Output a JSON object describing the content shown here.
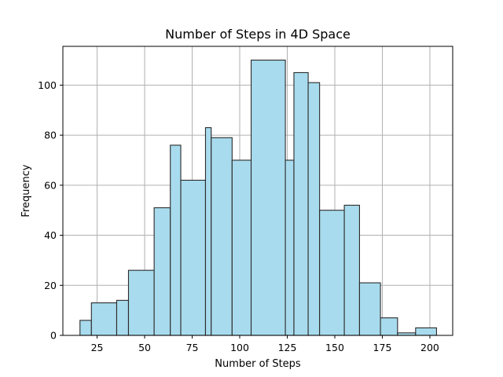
{
  "chart_data": {
    "type": "bar",
    "title": "Number of Steps in 4D Space",
    "xlabel": "Number of Steps",
    "ylabel": "Frequency",
    "xlim": [
      7,
      212
    ],
    "ylim": [
      0,
      115.5
    ],
    "x_ticks": [
      25,
      50,
      75,
      100,
      125,
      150,
      175,
      200
    ],
    "y_ticks": [
      0,
      20,
      40,
      60,
      80,
      100
    ],
    "bar_color": "#a8dbed",
    "edge_color": "#2b2b2b",
    "grid": true,
    "bins": [
      {
        "start": 16.0,
        "end": 22.0,
        "count": 6
      },
      {
        "start": 22.0,
        "end": 35.3,
        "count": 13
      },
      {
        "start": 35.3,
        "end": 41.5,
        "count": 14
      },
      {
        "start": 41.5,
        "end": 55.0,
        "count": 26
      },
      {
        "start": 55.0,
        "end": 63.5,
        "count": 51
      },
      {
        "start": 63.5,
        "end": 69.0,
        "count": 76
      },
      {
        "start": 69.0,
        "end": 82.0,
        "count": 62
      },
      {
        "start": 82.0,
        "end": 85.0,
        "count": 83
      },
      {
        "start": 85.0,
        "end": 96.0,
        "count": 79
      },
      {
        "start": 96.0,
        "end": 106.0,
        "count": 70
      },
      {
        "start": 106.0,
        "end": 124.0,
        "count": 110
      },
      {
        "start": 124.0,
        "end": 128.5,
        "count": 70
      },
      {
        "start": 128.5,
        "end": 136.0,
        "count": 105
      },
      {
        "start": 136.0,
        "end": 142.0,
        "count": 101
      },
      {
        "start": 142.0,
        "end": 155.0,
        "count": 50
      },
      {
        "start": 155.0,
        "end": 163.0,
        "count": 52
      },
      {
        "start": 163.0,
        "end": 174.0,
        "count": 21
      },
      {
        "start": 174.0,
        "end": 183.0,
        "count": 7
      },
      {
        "start": 183.0,
        "end": 192.5,
        "count": 1
      },
      {
        "start": 192.5,
        "end": 203.5,
        "count": 3
      }
    ]
  }
}
